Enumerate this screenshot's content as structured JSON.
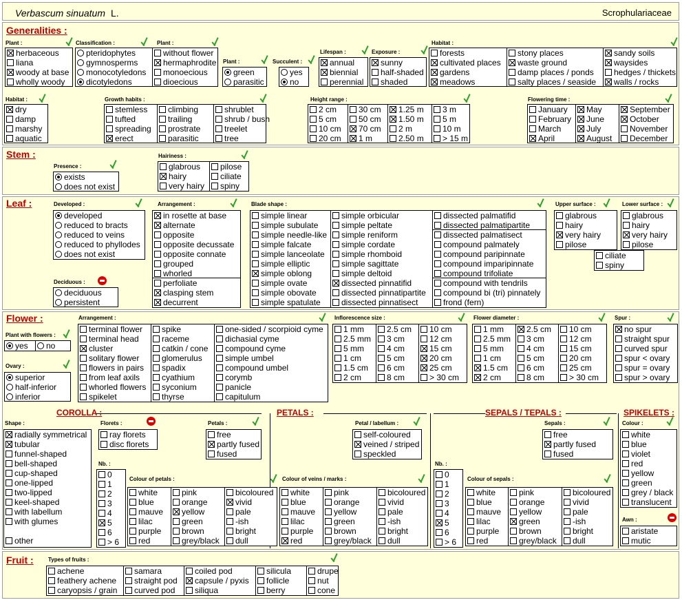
{
  "header": {
    "species": "Verbascum sinuatum",
    "author": "L.",
    "family": "Scrophulariaceae"
  },
  "sections": {
    "generalities": "Generalities :",
    "stem": "Stem :",
    "leaf": "Leaf :",
    "flower": "Flower :",
    "fruit": "Fruit :"
  },
  "subsections": {
    "corolla": "COROLLA :",
    "petals": "PETALS :",
    "sepals": "SEPALS / TEPALS :",
    "spikelets": "SPIKELETS :"
  },
  "labels": {
    "plant1": "Plant :",
    "classification": "Classification :",
    "plant2": "Plant :",
    "plant3": "Plant :",
    "succulent": "Succulent :",
    "lifespan": "Lifespan :",
    "exposure": "Exposure :",
    "habitat1": "Habitat :",
    "habitat2": "Habitat :",
    "growth": "Growth habits :",
    "height": "Height range :",
    "flowering": "Flowering time :",
    "presence": "Presence :",
    "hairiness": "Hairiness :",
    "developed": "Developed :",
    "deciduous": "Deciduous :",
    "arrangement": "Arrangement :",
    "blade": "Blade shape :",
    "upper": "Upper surface :",
    "lower": "Lower surface :",
    "withflowers": "Plant with flowers :",
    "ovary": "Ovary :",
    "farr": "Arrangement :",
    "infl": "Inflorescence size :",
    "fdiam": "Flower diameter :",
    "spur": "Spur :",
    "shape": "Shape :",
    "florets": "Florets :",
    "petals": "Petals :",
    "petlab": "Petal / labellum :",
    "sepals": "Sepals :",
    "colour": "Colour :",
    "awn": "Awn :",
    "nb1": "Nb. :",
    "nb2": "Nb. :",
    "colpet": "Colour of petals :",
    "colveins": "Colour of veins / marks :",
    "colsep": "Colour of sepals :",
    "fruits": "Types of fruits :"
  },
  "options": {
    "plant1": [
      [
        "herbaceous",
        1
      ],
      [
        "liana",
        0
      ],
      [
        "woody at base",
        1
      ],
      [
        "wholly woody",
        0
      ]
    ],
    "classification": [
      [
        "pteridophytes",
        0
      ],
      [
        "gymnosperms",
        0
      ],
      [
        "monocotyledons",
        0
      ],
      [
        "dicotyledons",
        1
      ]
    ],
    "plant2": [
      [
        "without flower",
        0
      ],
      [
        "hermaphrodite",
        1
      ],
      [
        "monoecious",
        0
      ],
      [
        "dioecious",
        0
      ]
    ],
    "plant3": [
      [
        "green",
        1
      ],
      [
        "parasitic",
        0
      ]
    ],
    "succulent": [
      [
        "yes",
        0
      ],
      [
        "no",
        1
      ]
    ],
    "lifespan": [
      [
        "annual",
        1
      ],
      [
        "biennial",
        1
      ],
      [
        "perennial",
        0
      ]
    ],
    "exposure": [
      [
        "sunny",
        1
      ],
      [
        "half-shaded",
        0
      ],
      [
        "shaded",
        0
      ]
    ],
    "habitat1": [
      [
        "forests",
        0
      ],
      [
        "cultivated places",
        1
      ],
      [
        "gardens",
        1
      ],
      [
        "meadows",
        1
      ],
      [
        "stony places",
        0
      ],
      [
        "waste ground",
        1
      ],
      [
        "damp places / ponds",
        0
      ],
      [
        "salty places / seaside",
        0
      ],
      [
        "sandy soils",
        1
      ],
      [
        "waysides",
        1
      ],
      [
        "hedges / thickets",
        0
      ],
      [
        "walls / rocks",
        1
      ]
    ],
    "habitat2": [
      [
        "dry",
        1
      ],
      [
        "damp",
        0
      ],
      [
        "marshy",
        0
      ],
      [
        "aquatic",
        0
      ]
    ],
    "growth": [
      [
        "stemless",
        0
      ],
      [
        "tufted",
        0
      ],
      [
        "spreading",
        0
      ],
      [
        "erect",
        1
      ],
      [
        "climbing",
        0
      ],
      [
        "trailing",
        0
      ],
      [
        "prostrate",
        0
      ],
      [
        "parasitic",
        0
      ],
      [
        "shrublet",
        0
      ],
      [
        "shrub / bush",
        0
      ],
      [
        "treelet",
        0
      ],
      [
        "tree",
        0
      ]
    ],
    "height": [
      [
        "2 cm",
        0
      ],
      [
        "5 cm",
        0
      ],
      [
        "10 cm",
        0
      ],
      [
        "20 cm",
        0
      ],
      [
        "30 cm",
        0
      ],
      [
        "50 cm",
        0
      ],
      [
        "70 cm",
        1
      ],
      [
        "1 m",
        1
      ],
      [
        "1.25 m",
        1
      ],
      [
        "1.50 m",
        1
      ],
      [
        "2 m",
        0
      ],
      [
        "2.50 m",
        0
      ],
      [
        "3 m",
        0
      ],
      [
        "5 m",
        0
      ],
      [
        "10 m",
        0
      ],
      [
        "> 15 m",
        0
      ]
    ],
    "flowering": [
      [
        "January",
        0
      ],
      [
        "February",
        0
      ],
      [
        "March",
        0
      ],
      [
        "April",
        1
      ],
      [
        "May",
        1
      ],
      [
        "June",
        1
      ],
      [
        "July",
        1
      ],
      [
        "August",
        1
      ],
      [
        "September",
        1
      ],
      [
        "October",
        1
      ],
      [
        "November",
        0
      ],
      [
        "December",
        0
      ]
    ],
    "presence": [
      [
        "exists",
        1
      ],
      [
        "does not exist",
        0
      ]
    ],
    "hairiness": [
      [
        "glabrous",
        0
      ],
      [
        "hairy",
        1
      ],
      [
        "very hairy",
        0
      ],
      [
        "pilose",
        0
      ],
      [
        "ciliate",
        0
      ],
      [
        "spiny",
        0
      ]
    ],
    "developed": [
      [
        "developed",
        1
      ],
      [
        "reduced to bracts",
        0
      ],
      [
        "reduced to veins",
        0
      ],
      [
        "reduced to phyllodes",
        0
      ],
      [
        "does not exist",
        0
      ]
    ],
    "deciduous": [
      [
        "deciduous",
        0
      ],
      [
        "persistent",
        0
      ]
    ],
    "arrangement": [
      [
        "in rosette at base",
        1
      ],
      [
        "alternate",
        1
      ],
      [
        "opposite",
        0
      ],
      [
        "opposite decussate",
        0
      ],
      [
        "opposite connate",
        0
      ],
      [
        "grouped",
        0
      ],
      [
        "whorled",
        0
      ],
      [
        "perfoliate",
        0
      ],
      [
        "clasping stem",
        1
      ],
      [
        "decurrent",
        1
      ]
    ],
    "blade": [
      [
        "simple linear",
        0
      ],
      [
        "simple subulate",
        0
      ],
      [
        "simple needle-like",
        0
      ],
      [
        "simple falcate",
        0
      ],
      [
        "simple lanceolate",
        0
      ],
      [
        "simple elliptic",
        0
      ],
      [
        "simple oblong",
        1
      ],
      [
        "simple ovate",
        0
      ],
      [
        "simple obovate",
        0
      ],
      [
        "simple spatulate",
        0
      ],
      [
        "simple orbicular",
        0
      ],
      [
        "simple peltate",
        0
      ],
      [
        "simple reniform",
        0
      ],
      [
        "simple cordate",
        0
      ],
      [
        "simple rhomboid",
        0
      ],
      [
        "simple sagittate",
        0
      ],
      [
        "simple deltoid",
        0
      ],
      [
        "dissected pinnatifid",
        1
      ],
      [
        "dissected pinnatipartite",
        0
      ],
      [
        "dissected pinnatisect",
        0
      ],
      [
        "dissected palmatifid",
        0
      ],
      [
        "dissected palmatipartite",
        0
      ],
      [
        "dissected palmatisect",
        0
      ],
      [
        "compound palmately",
        0
      ],
      [
        "compound paripinnate",
        0
      ],
      [
        "compound imparipinnate",
        0
      ],
      [
        "compound trifoliate",
        0
      ],
      [
        "compound with tendrils",
        0
      ],
      [
        "compound bi (tri) pinnately",
        0
      ],
      [
        "frond  (fern)",
        0
      ]
    ],
    "upper": [
      [
        "glabrous",
        0
      ],
      [
        "hairy",
        0
      ],
      [
        "very hairy",
        1
      ],
      [
        "pilose",
        0
      ]
    ],
    "lower": [
      [
        "glabrous",
        0
      ],
      [
        "hairy",
        0
      ],
      [
        "very hairy",
        1
      ],
      [
        "pilose",
        0
      ]
    ],
    "leafextra": [
      [
        "ciliate",
        0
      ],
      [
        "spiny",
        0
      ]
    ],
    "withflowers": [
      [
        "yes",
        1
      ],
      [
        "no",
        0
      ]
    ],
    "ovary": [
      [
        "superior",
        1
      ],
      [
        "half-inferior",
        0
      ],
      [
        "inferior",
        0
      ]
    ],
    "farr": [
      [
        "terminal flower",
        0
      ],
      [
        "terminal head",
        0
      ],
      [
        "cluster",
        1
      ],
      [
        "solitary flower",
        0
      ],
      [
        "flowers in pairs",
        0
      ],
      [
        "from leaf axils",
        0
      ],
      [
        "whorled flowers",
        0
      ],
      [
        "spikelet",
        0
      ],
      [
        "spike",
        0
      ],
      [
        "raceme",
        0
      ],
      [
        "catkin / cone",
        0
      ],
      [
        "glomerulus",
        0
      ],
      [
        "spadix",
        0
      ],
      [
        "cyathium",
        0
      ],
      [
        "syconium",
        0
      ],
      [
        "thyrse",
        0
      ],
      [
        "one-sided / scorpioid cyme",
        0
      ],
      [
        "dichasial cyme",
        0
      ],
      [
        "compound cyme",
        0
      ],
      [
        "simple umbel",
        0
      ],
      [
        "compound umbel",
        0
      ],
      [
        "corymb",
        0
      ],
      [
        "panicle",
        0
      ],
      [
        "capitulum",
        0
      ]
    ],
    "infl": [
      [
        "1 mm",
        0
      ],
      [
        "2.5 mm",
        0
      ],
      [
        "5 mm",
        0
      ],
      [
        "1 cm",
        0
      ],
      [
        "1.5 cm",
        0
      ],
      [
        "2 cm",
        0
      ],
      [
        "2.5 cm",
        0
      ],
      [
        "3 cm",
        0
      ],
      [
        "4 cm",
        0
      ],
      [
        "5 cm",
        0
      ],
      [
        "6 cm",
        0
      ],
      [
        "8 cm",
        0
      ],
      [
        "10 cm",
        0
      ],
      [
        "12 cm",
        0
      ],
      [
        "15 cm",
        1
      ],
      [
        "20 cm",
        1
      ],
      [
        "25 cm",
        1
      ],
      [
        "> 30 cm",
        0
      ]
    ],
    "fdiam": [
      [
        "1 mm",
        0
      ],
      [
        "2.5 mm",
        0
      ],
      [
        "5 mm",
        0
      ],
      [
        "1 cm",
        0
      ],
      [
        "1.5 cm",
        1
      ],
      [
        "2 cm",
        1
      ],
      [
        "2.5 cm",
        1
      ],
      [
        "3 cm",
        0
      ],
      [
        "4 cm",
        0
      ],
      [
        "5 cm",
        0
      ],
      [
        "6 cm",
        0
      ],
      [
        "8 cm",
        0
      ],
      [
        "10 cm",
        0
      ],
      [
        "12 cm",
        0
      ],
      [
        "15 cm",
        0
      ],
      [
        "20 cm",
        0
      ],
      [
        "25 cm",
        0
      ],
      [
        "> 30 cm",
        0
      ]
    ],
    "spur": [
      [
        "no spur",
        1
      ],
      [
        "straight spur",
        0
      ],
      [
        "curved spur",
        0
      ],
      [
        "spur < ovary",
        0
      ],
      [
        "spur = ovary",
        0
      ],
      [
        "spur > ovary",
        0
      ]
    ],
    "shape": [
      [
        "radially symmetrical",
        1
      ],
      [
        "tubular",
        1
      ],
      [
        "funnel-shaped",
        0
      ],
      [
        "bell-shaped",
        0
      ],
      [
        "cup-shaped",
        0
      ],
      [
        "one-lipped",
        0
      ],
      [
        "two-lipped",
        0
      ],
      [
        "keel-shaped",
        0
      ],
      [
        "with labellum",
        0
      ],
      [
        "with glumes",
        0
      ],
      [
        "other",
        0
      ]
    ],
    "florets": [
      [
        "ray florets",
        0
      ],
      [
        "disc florets",
        0
      ]
    ],
    "nb1": [
      [
        "0",
        0
      ],
      [
        "1",
        0
      ],
      [
        "2",
        0
      ],
      [
        "3",
        0
      ],
      [
        "4",
        0
      ],
      [
        "5",
        1
      ],
      [
        "6",
        0
      ],
      [
        "> 6",
        0
      ]
    ],
    "colpet": [
      [
        "white",
        0
      ],
      [
        "blue",
        0
      ],
      [
        "mauve",
        0
      ],
      [
        "lilac",
        0
      ],
      [
        "purple",
        0
      ],
      [
        "red",
        0
      ],
      [
        "pink",
        0
      ],
      [
        "orange",
        0
      ],
      [
        "yellow",
        1
      ],
      [
        "green",
        0
      ],
      [
        "brown",
        0
      ],
      [
        "grey/black",
        0
      ],
      [
        "bicoloured",
        0
      ],
      [
        "vivid",
        1
      ],
      [
        "pale",
        0
      ],
      [
        "-ish",
        0
      ],
      [
        "bright",
        0
      ],
      [
        "dull",
        0
      ]
    ],
    "petals": [
      [
        "free",
        0
      ],
      [
        "partly fused",
        1
      ],
      [
        "fused",
        0
      ]
    ],
    "petlab": [
      [
        "self-coloured",
        0
      ],
      [
        "veined / striped",
        1
      ],
      [
        "speckled",
        0
      ]
    ],
    "colveins": [
      [
        "white",
        0
      ],
      [
        "blue",
        0
      ],
      [
        "mauve",
        0
      ],
      [
        "lilac",
        0
      ],
      [
        "purple",
        0
      ],
      [
        "red",
        1
      ],
      [
        "pink",
        0
      ],
      [
        "orange",
        0
      ],
      [
        "yellow",
        0
      ],
      [
        "green",
        0
      ],
      [
        "brown",
        0
      ],
      [
        "grey/black",
        0
      ],
      [
        "bicoloured",
        0
      ],
      [
        "vivid",
        0
      ],
      [
        "pale",
        0
      ],
      [
        "-ish",
        0
      ],
      [
        "bright",
        0
      ],
      [
        "dull",
        0
      ]
    ],
    "sepals": [
      [
        "free",
        0
      ],
      [
        "partly fused",
        1
      ],
      [
        "fused",
        0
      ]
    ],
    "nb2": [
      [
        "0",
        0
      ],
      [
        "1",
        0
      ],
      [
        "2",
        0
      ],
      [
        "3",
        0
      ],
      [
        "4",
        0
      ],
      [
        "5",
        1
      ],
      [
        "6",
        0
      ],
      [
        "> 6",
        0
      ]
    ],
    "colsep": [
      [
        "white",
        0
      ],
      [
        "blue",
        0
      ],
      [
        "mauve",
        0
      ],
      [
        "lilac",
        0
      ],
      [
        "purple",
        0
      ],
      [
        "red",
        0
      ],
      [
        "pink",
        0
      ],
      [
        "orange",
        0
      ],
      [
        "yellow",
        0
      ],
      [
        "green",
        1
      ],
      [
        "brown",
        0
      ],
      [
        "grey/black",
        0
      ],
      [
        "bicoloured",
        0
      ],
      [
        "vivid",
        0
      ],
      [
        "pale",
        0
      ],
      [
        "-ish",
        0
      ],
      [
        "bright",
        0
      ],
      [
        "dull",
        0
      ]
    ],
    "colour": [
      [
        "white",
        0
      ],
      [
        "blue",
        0
      ],
      [
        "violet",
        0
      ],
      [
        "red",
        0
      ],
      [
        "yellow",
        0
      ],
      [
        "green",
        0
      ],
      [
        "grey / black",
        0
      ],
      [
        "translucent",
        0
      ]
    ],
    "awn": [
      [
        "aristate",
        0
      ],
      [
        "mutic",
        0
      ]
    ],
    "fruits": [
      [
        "achene",
        0
      ],
      [
        "feathery achene",
        0
      ],
      [
        "caryopsis / grain",
        0
      ],
      [
        "samara",
        0
      ],
      [
        "straight pod",
        0
      ],
      [
        "curved pod",
        0
      ],
      [
        "coiled pod",
        0
      ],
      [
        "capsule / pyxis",
        1
      ],
      [
        "siliqua",
        0
      ],
      [
        "silicula",
        0
      ],
      [
        "follicle",
        0
      ],
      [
        "berry",
        0
      ],
      [
        "drupe",
        0
      ],
      [
        "nut",
        0
      ],
      [
        "cone",
        0
      ]
    ]
  },
  "colors": {
    "band": "#ffffdc",
    "section": "#c00000",
    "check": "#2e9e2e",
    "stop": "#dd0000"
  }
}
